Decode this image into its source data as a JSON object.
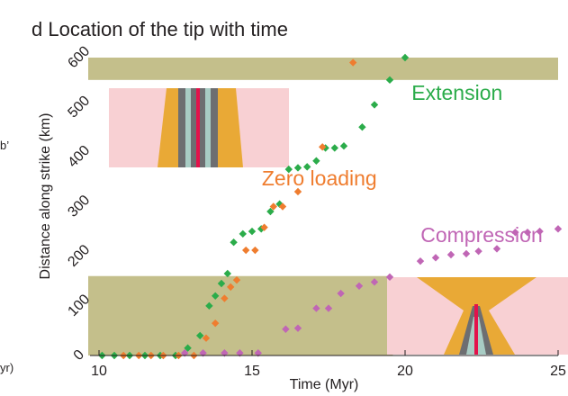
{
  "chart_data": {
    "type": "scatter",
    "title": "d Location of the tip with time",
    "xlabel": "Time (Myr)",
    "ylabel": "Distance along strike (km)",
    "xlim": [
      10,
      25
    ],
    "ylim": [
      0,
      600
    ],
    "xticks": [
      10,
      15,
      20,
      25
    ],
    "yticks": [
      0,
      100,
      200,
      300,
      400,
      500,
      600
    ],
    "colors": {
      "Extension": "#2bac4a",
      "Zero loading": "#ef7d2f",
      "Compression": "#c066b5",
      "band": "#c4bf8b",
      "inset_bg": "#f8d0d3",
      "inset_orange": "#e9a936",
      "inset_gray": "#6d6e71",
      "inset_teal": "#a8ccc4",
      "inset_red": "#e3124b"
    },
    "bands": [
      {
        "y0": 555,
        "y1": 600,
        "x0": 10,
        "x1": 25
      },
      {
        "y0": 0,
        "y1": 160,
        "x0": 10,
        "x1": 19.6
      }
    ],
    "series": [
      {
        "name": "Extension",
        "points": [
          [
            10.1,
            0
          ],
          [
            10.5,
            0
          ],
          [
            11,
            0
          ],
          [
            11.5,
            0
          ],
          [
            12,
            0
          ],
          [
            12.5,
            0
          ],
          [
            12.9,
            15
          ],
          [
            13.3,
            40
          ],
          [
            13.6,
            100
          ],
          [
            13.8,
            120
          ],
          [
            14,
            145
          ],
          [
            14.2,
            165
          ],
          [
            14.4,
            228
          ],
          [
            14.7,
            245
          ],
          [
            15,
            250
          ],
          [
            15.3,
            255
          ],
          [
            15.6,
            290
          ],
          [
            15.9,
            305
          ],
          [
            16.2,
            375
          ],
          [
            16.5,
            378
          ],
          [
            16.8,
            380
          ],
          [
            17.1,
            392
          ],
          [
            17.4,
            418
          ],
          [
            17.7,
            418
          ],
          [
            18,
            422
          ],
          [
            18.6,
            460
          ],
          [
            19,
            505
          ],
          [
            19.5,
            555
          ],
          [
            20,
            600
          ]
        ]
      },
      {
        "name": "Zero loading",
        "points": [
          [
            10.8,
            0
          ],
          [
            11.3,
            0
          ],
          [
            11.7,
            0
          ],
          [
            12.1,
            0
          ],
          [
            12.6,
            0
          ],
          [
            13.1,
            0
          ],
          [
            13.5,
            35
          ],
          [
            13.8,
            65
          ],
          [
            14.1,
            115
          ],
          [
            14.3,
            138
          ],
          [
            14.5,
            152
          ],
          [
            14.8,
            212
          ],
          [
            15.1,
            212
          ],
          [
            15.4,
            258
          ],
          [
            15.7,
            300
          ],
          [
            16,
            300
          ],
          [
            16.5,
            330
          ],
          [
            17.3,
            420
          ],
          [
            18.3,
            590
          ]
        ]
      },
      {
        "name": "Compression",
        "points": [
          [
            12.8,
            5
          ],
          [
            13.4,
            5
          ],
          [
            14.1,
            5
          ],
          [
            14.6,
            5
          ],
          [
            15.2,
            5
          ],
          [
            16.1,
            53
          ],
          [
            16.5,
            55
          ],
          [
            17.1,
            95
          ],
          [
            17.5,
            95
          ],
          [
            17.9,
            125
          ],
          [
            18.5,
            140
          ],
          [
            19,
            148
          ],
          [
            19.5,
            158
          ],
          [
            20.5,
            190
          ],
          [
            21,
            197
          ],
          [
            21.5,
            203
          ],
          [
            22,
            205
          ],
          [
            22.4,
            210
          ],
          [
            23,
            215
          ],
          [
            23.6,
            248
          ],
          [
            24,
            248
          ],
          [
            24.4,
            250
          ],
          [
            25,
            255
          ]
        ]
      }
    ],
    "series_labels": [
      {
        "name": "Extension",
        "x": 21.7,
        "y": 515
      },
      {
        "name": "Zero loading",
        "x": 17.2,
        "y": 343
      },
      {
        "name": "Compression",
        "x": 22.5,
        "y": 228
      }
    ],
    "edge_labels": [
      "b’",
      "yr)"
    ]
  }
}
